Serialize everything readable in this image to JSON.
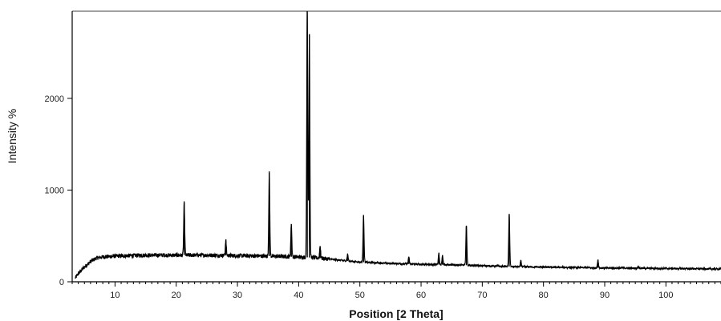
{
  "chart_data": {
    "type": "line",
    "xlabel": "Position [2 Theta]",
    "ylabel": "Intensity %",
    "xlim": [
      3,
      109
    ],
    "ylim": [
      0,
      2950
    ],
    "x_ticks": [
      10,
      20,
      30,
      40,
      50,
      60,
      70,
      80,
      90,
      100
    ],
    "y_ticks": [
      0,
      1000,
      2000
    ],
    "grid": false,
    "legend": "none",
    "line_color": "#000000",
    "baseline": [
      [
        3.5,
        40
      ],
      [
        4,
        90
      ],
      [
        5,
        160
      ],
      [
        6,
        220
      ],
      [
        7,
        260
      ],
      [
        8,
        270
      ],
      [
        10,
        280
      ],
      [
        12,
        285
      ],
      [
        15,
        290
      ],
      [
        18,
        290
      ],
      [
        20,
        290
      ],
      [
        25,
        290
      ],
      [
        30,
        285
      ],
      [
        35,
        280
      ],
      [
        38,
        275
      ],
      [
        40,
        270
      ],
      [
        42,
        265
      ],
      [
        44,
        255
      ],
      [
        46,
        240
      ],
      [
        50,
        215
      ],
      [
        55,
        200
      ],
      [
        60,
        190
      ],
      [
        65,
        185
      ],
      [
        70,
        175
      ],
      [
        75,
        165
      ],
      [
        80,
        160
      ],
      [
        85,
        155
      ],
      [
        90,
        150
      ],
      [
        95,
        148
      ],
      [
        100,
        145
      ],
      [
        109,
        140
      ]
    ],
    "peaks": [
      {
        "x": 21.3,
        "height": 860
      },
      {
        "x": 28.1,
        "height": 450
      },
      {
        "x": 35.2,
        "height": 1190
      },
      {
        "x": 38.8,
        "height": 630
      },
      {
        "x": 41.4,
        "height": 2950
      },
      {
        "x": 41.75,
        "height": 2700
      },
      {
        "x": 43.5,
        "height": 390
      },
      {
        "x": 48.0,
        "height": 300
      },
      {
        "x": 50.6,
        "height": 720
      },
      {
        "x": 58.0,
        "height": 270
      },
      {
        "x": 62.9,
        "height": 310
      },
      {
        "x": 63.5,
        "height": 290
      },
      {
        "x": 67.4,
        "height": 610
      },
      {
        "x": 74.4,
        "height": 740
      },
      {
        "x": 76.3,
        "height": 230
      },
      {
        "x": 88.9,
        "height": 240
      },
      {
        "x": 95.5,
        "height": 170
      }
    ],
    "noise_amplitude": 45
  }
}
